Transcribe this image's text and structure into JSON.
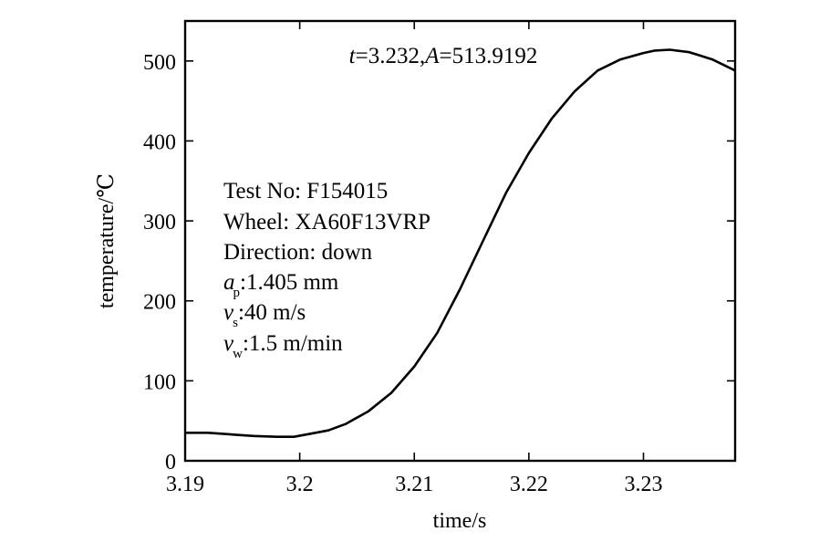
{
  "chart_data": {
    "type": "line",
    "title": "",
    "xlabel": "time/s",
    "ylabel": "temperature/℃",
    "xlim": [
      3.19,
      3.238
    ],
    "ylim": [
      0,
      550
    ],
    "xticks": [
      3.19,
      3.2,
      3.21,
      3.22,
      3.23
    ],
    "xtick_labels": [
      "3.19",
      "3.2",
      "3.21",
      "3.22",
      "3.23"
    ],
    "yticks": [
      0,
      100,
      200,
      300,
      400,
      500
    ],
    "ytick_labels": [
      "0",
      "100",
      "200",
      "300",
      "400",
      "500"
    ],
    "grid": false,
    "line_color": "#000000",
    "series": [
      {
        "x": [
          3.19,
          3.192,
          3.194,
          3.196,
          3.198,
          3.1995,
          3.201,
          3.2025,
          3.204,
          3.206,
          3.208,
          3.21,
          3.212,
          3.214,
          3.216,
          3.218,
          3.22,
          3.222,
          3.224,
          3.226,
          3.228,
          3.23,
          3.231,
          3.2323,
          3.234,
          3.236,
          3.238
        ],
        "y": [
          35,
          35,
          33,
          31,
          30,
          30,
          34,
          38,
          46,
          62,
          85,
          118,
          160,
          215,
          275,
          335,
          385,
          428,
          462,
          488,
          502,
          510,
          513,
          514,
          511,
          502,
          488
        ]
      }
    ],
    "annotation": {
      "t_var": "t",
      "t_value": "=3.232,",
      "a_var": "A",
      "a_value": "=513.9192"
    },
    "info": {
      "test_no": "Test No: F154015",
      "wheel": "Wheel: XA60F13VRP",
      "direction": "Direction: down",
      "ap_var": "a",
      "ap_sub": "p",
      "ap_value": ":1.405 mm",
      "vs_var": "v",
      "vs_sub": "s",
      "vs_value": ":40 m/s",
      "vw_var": "v",
      "vw_sub": "w",
      "vw_value": ":1.5 m/min"
    }
  }
}
